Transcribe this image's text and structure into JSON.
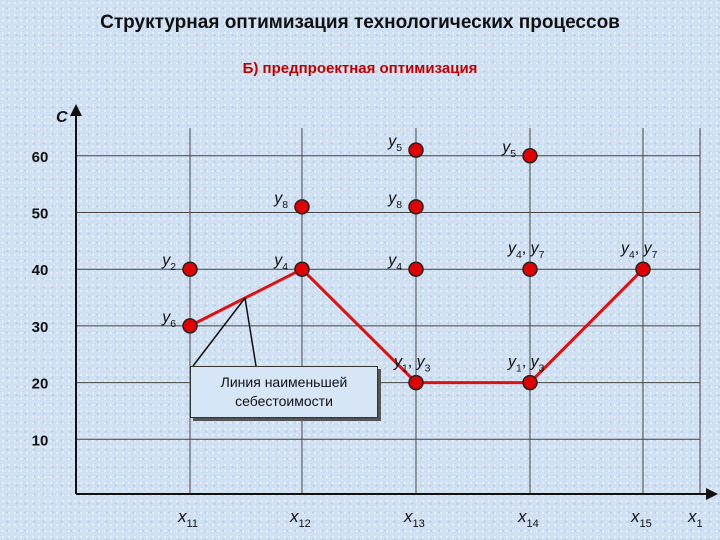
{
  "header": {
    "title": "Структурная оптимизация технологических процессов",
    "subtitle": "Б) предпроектная оптимизация"
  },
  "callout_text": "Линия наименьшей себестоимости",
  "colors": {
    "line": "#e01010",
    "node_fill": "#e00000",
    "node_stroke": "#222222",
    "grid": "#444444",
    "subtitle": "#c00000"
  },
  "chart_data": {
    "type": "scatter",
    "title": "",
    "ylabel": "С",
    "xlabel": "x",
    "xlabel_sub": "1",
    "ylim": [
      0,
      67
    ],
    "yticks": [
      10,
      20,
      30,
      40,
      50,
      60
    ],
    "x_categories": [
      {
        "base": "x",
        "sub": "11"
      },
      {
        "base": "x",
        "sub": "12"
      },
      {
        "base": "x",
        "sub": "13"
      },
      {
        "base": "x",
        "sub": "14"
      },
      {
        "base": "x",
        "sub": "15"
      }
    ],
    "points": [
      {
        "x": 0,
        "y": 40,
        "label": [
          [
            "y",
            "2"
          ]
        ],
        "label_pos": "left"
      },
      {
        "x": 0,
        "y": 30,
        "label": [
          [
            "y",
            "6"
          ]
        ],
        "label_pos": "left"
      },
      {
        "x": 1,
        "y": 51,
        "label": [
          [
            "y",
            "8"
          ]
        ],
        "label_pos": "left"
      },
      {
        "x": 1,
        "y": 40,
        "label": [
          [
            "y",
            "4"
          ]
        ],
        "label_pos": "left"
      },
      {
        "x": 2,
        "y": 61,
        "label": [
          [
            "y",
            "5"
          ]
        ],
        "label_pos": "left"
      },
      {
        "x": 2,
        "y": 51,
        "label": [
          [
            "y",
            "8"
          ]
        ],
        "label_pos": "left"
      },
      {
        "x": 2,
        "y": 40,
        "label": [
          [
            "y",
            "4"
          ]
        ],
        "label_pos": "left"
      },
      {
        "x": 2,
        "y": 20,
        "label": [
          [
            "y",
            "1"
          ],
          [
            "y",
            "3"
          ]
        ],
        "label_pos": "above"
      },
      {
        "x": 3,
        "y": 60,
        "label": [
          [
            "y",
            "5"
          ]
        ],
        "label_pos": "left"
      },
      {
        "x": 3,
        "y": 40,
        "label": [
          [
            "y",
            "4"
          ],
          [
            "y",
            "7"
          ]
        ],
        "label_pos": "above"
      },
      {
        "x": 3,
        "y": 20,
        "label": [
          [
            "y",
            "1"
          ],
          [
            "y",
            "3"
          ]
        ],
        "label_pos": "above"
      },
      {
        "x": 4,
        "y": 40,
        "label": [
          [
            "y",
            "4"
          ],
          [
            "y",
            "7"
          ]
        ],
        "label_pos": "above"
      }
    ],
    "series": [
      {
        "points": [
          [
            0,
            30
          ],
          [
            1,
            40
          ],
          [
            2,
            20
          ],
          [
            3,
            20
          ],
          [
            4,
            40
          ]
        ]
      }
    ]
  }
}
